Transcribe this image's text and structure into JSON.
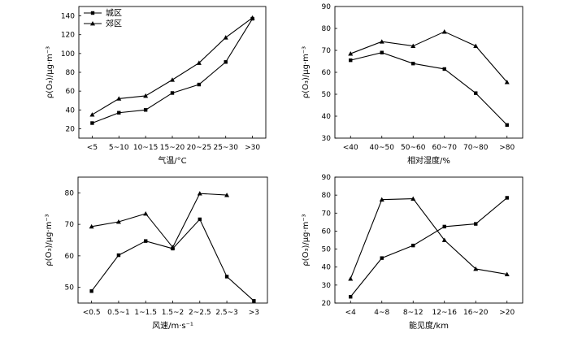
{
  "chart_data": [
    {
      "type": "line",
      "categories": [
        "<5",
        "5~10",
        "10~15",
        "15~20",
        "20~25",
        "25~30",
        ">30"
      ],
      "xlabel": "气温/°C",
      "ylabel": "ρ(O₃)/μg·m⁻³",
      "ylim": [
        10,
        150
      ],
      "yticks": [
        20,
        40,
        60,
        80,
        100,
        120,
        140
      ],
      "legend_position": "top-left",
      "series": [
        {
          "name": "城区",
          "marker": "square",
          "values": [
            26,
            37,
            40,
            58,
            67,
            91,
            137
          ]
        },
        {
          "name": "郊区",
          "marker": "triangle",
          "values": [
            35,
            52,
            55,
            72,
            90,
            117,
            138
          ]
        }
      ]
    },
    {
      "type": "line",
      "categories": [
        "<40",
        "40~50",
        "50~60",
        "60~70",
        "70~80",
        ">80"
      ],
      "xlabel": "相对湿度/%",
      "ylabel": "ρ(O₃)/μg·m⁻³",
      "ylim": [
        30,
        90
      ],
      "yticks": [
        30,
        40,
        50,
        60,
        70,
        80,
        90
      ],
      "series": [
        {
          "name": "城区",
          "marker": "square",
          "values": [
            65.5,
            69,
            64,
            61.5,
            50.5,
            36
          ]
        },
        {
          "name": "郊区",
          "marker": "triangle",
          "values": [
            68.5,
            74,
            72,
            78.5,
            72,
            55.5
          ]
        }
      ]
    },
    {
      "type": "line",
      "categories": [
        "<0.5",
        "0.5~1",
        "1~1.5",
        "1.5~2",
        "2~2.5",
        "2.5~3",
        ">3"
      ],
      "xlabel": "风速/m·s⁻¹",
      "ylabel": "ρ(O₃)/μg·m⁻³",
      "ylim": [
        45,
        85
      ],
      "yticks": [
        50,
        60,
        70,
        80
      ],
      "series": [
        {
          "name": "城区",
          "marker": "square",
          "values": [
            48.8,
            60.2,
            64.7,
            62.3,
            71.6,
            53.4,
            45.7
          ]
        },
        {
          "name": "郊区",
          "marker": "triangle",
          "values": [
            69.3,
            70.8,
            73.4,
            62.7,
            79.8,
            79.3,
            null
          ]
        }
      ]
    },
    {
      "type": "line",
      "categories": [
        "<4",
        "4~8",
        "8~12",
        "12~16",
        "16~20",
        ">20"
      ],
      "xlabel": "能见度/km",
      "ylabel": "ρ(O₃)/μg·m⁻³",
      "ylim": [
        20,
        90
      ],
      "yticks": [
        20,
        30,
        40,
        50,
        60,
        70,
        80,
        90
      ],
      "series": [
        {
          "name": "城区",
          "marker": "square",
          "values": [
            23.5,
            45,
            52,
            62.5,
            64,
            78.5
          ]
        },
        {
          "name": "郊区",
          "marker": "triangle",
          "values": [
            33.5,
            77.5,
            78,
            55,
            39,
            36
          ]
        }
      ]
    }
  ]
}
